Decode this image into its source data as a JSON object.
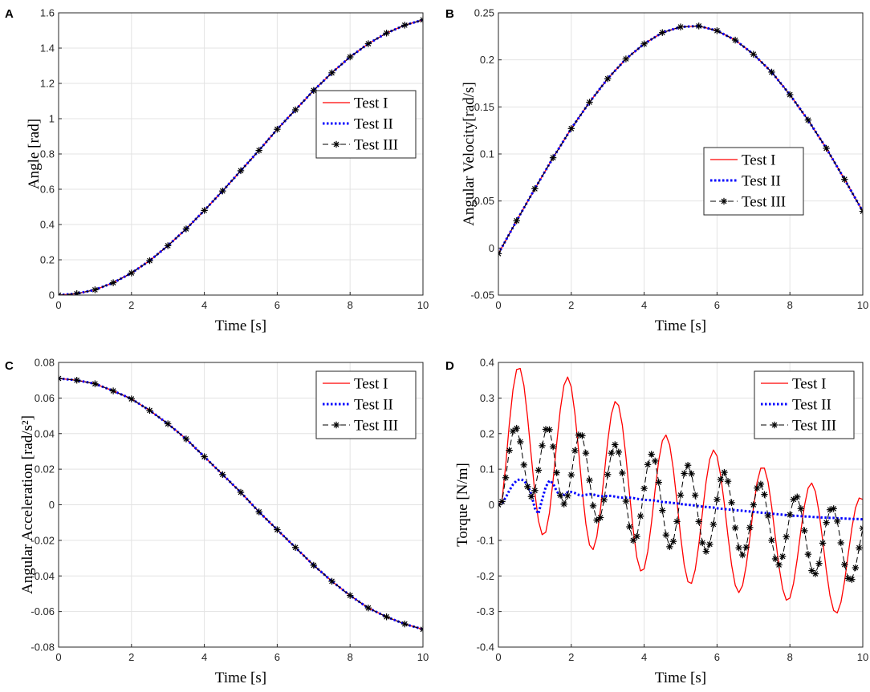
{
  "chart_data": [
    {
      "panel": "A",
      "type": "line",
      "xlabel": "Time [s]",
      "ylabel": "Angle [rad]",
      "xlim": [
        0,
        10
      ],
      "ylim": [
        0,
        1.6
      ],
      "xticks": [
        "0",
        "2",
        "4",
        "6",
        "8",
        "10"
      ],
      "yticks": [
        "0",
        "0.2",
        "0.4",
        "0.6",
        "0.8",
        "1",
        "1.2",
        "1.4",
        "1.6"
      ],
      "grid": true,
      "legend_position": "right-middle",
      "x": [
        0,
        0.5,
        1,
        1.5,
        2,
        2.5,
        3,
        3.5,
        4,
        4.5,
        5,
        5.5,
        6,
        6.5,
        7,
        7.5,
        8,
        8.5,
        9,
        9.5,
        10
      ],
      "series": [
        {
          "name": "Test I",
          "color": "#ff0000",
          "style": "solid",
          "values": [
            0,
            0.008,
            0.03,
            0.07,
            0.125,
            0.195,
            0.28,
            0.375,
            0.48,
            0.59,
            0.705,
            0.82,
            0.94,
            1.05,
            1.16,
            1.26,
            1.35,
            1.425,
            1.485,
            1.53,
            1.56
          ]
        },
        {
          "name": "Test II",
          "color": "#0000ff",
          "style": "dotted",
          "values": [
            0,
            0.008,
            0.03,
            0.07,
            0.125,
            0.195,
            0.28,
            0.375,
            0.48,
            0.59,
            0.705,
            0.82,
            0.94,
            1.05,
            1.16,
            1.26,
            1.35,
            1.425,
            1.485,
            1.53,
            1.56
          ]
        },
        {
          "name": "Test III",
          "color": "#000000",
          "style": "dashed-star",
          "values": [
            0,
            0.008,
            0.03,
            0.07,
            0.125,
            0.195,
            0.28,
            0.375,
            0.48,
            0.59,
            0.705,
            0.82,
            0.94,
            1.05,
            1.16,
            1.26,
            1.35,
            1.425,
            1.485,
            1.53,
            1.56
          ]
        }
      ]
    },
    {
      "panel": "B",
      "type": "line",
      "xlabel": "Time [s]",
      "ylabel": "Angular Velocity[rad/s]",
      "xlim": [
        0,
        10
      ],
      "ylim": [
        -0.05,
        0.25
      ],
      "xticks": [
        "0",
        "2",
        "4",
        "6",
        "8",
        "10"
      ],
      "yticks": [
        "-0.05",
        "0",
        "0.05",
        "0.1",
        "0.15",
        "0.2",
        "0.25"
      ],
      "grid": true,
      "legend_position": "right-middle",
      "x": [
        0,
        0.5,
        1,
        1.5,
        2,
        2.5,
        3,
        3.5,
        4,
        4.5,
        5,
        5.5,
        6,
        6.5,
        7,
        7.5,
        8,
        8.5,
        9,
        9.5,
        10
      ],
      "series": [
        {
          "name": "Test I",
          "color": "#ff0000",
          "style": "solid",
          "values": [
            -0.006,
            0.029,
            0.063,
            0.096,
            0.127,
            0.155,
            0.18,
            0.201,
            0.217,
            0.229,
            0.235,
            0.236,
            0.231,
            0.221,
            0.206,
            0.187,
            0.163,
            0.136,
            0.106,
            0.073,
            0.039
          ]
        },
        {
          "name": "Test II",
          "color": "#0000ff",
          "style": "dotted",
          "values": [
            -0.006,
            0.029,
            0.063,
            0.096,
            0.127,
            0.155,
            0.18,
            0.201,
            0.217,
            0.229,
            0.235,
            0.236,
            0.231,
            0.221,
            0.206,
            0.187,
            0.163,
            0.136,
            0.106,
            0.073,
            0.039
          ]
        },
        {
          "name": "Test III",
          "color": "#000000",
          "style": "dashed-star",
          "values": [
            -0.006,
            0.029,
            0.063,
            0.096,
            0.127,
            0.155,
            0.18,
            0.201,
            0.217,
            0.229,
            0.235,
            0.236,
            0.231,
            0.221,
            0.206,
            0.187,
            0.163,
            0.136,
            0.106,
            0.073,
            0.039
          ]
        }
      ]
    },
    {
      "panel": "C",
      "type": "line",
      "xlabel": "Time [s]",
      "ylabel": "Angular Acceleration [rad/s²]",
      "xlim": [
        0,
        10
      ],
      "ylim": [
        -0.08,
        0.08
      ],
      "xticks": [
        "0",
        "2",
        "4",
        "6",
        "8",
        "10"
      ],
      "yticks": [
        "-0.08",
        "-0.06",
        "-0.04",
        "-0.02",
        "0",
        "0.02",
        "0.04",
        "0.06",
        "0.08"
      ],
      "grid": true,
      "legend_position": "top-right",
      "x": [
        0,
        0.5,
        1,
        1.5,
        2,
        2.5,
        3,
        3.5,
        4,
        4.5,
        5,
        5.5,
        6,
        6.5,
        7,
        7.5,
        8,
        8.5,
        9,
        9.5,
        10
      ],
      "series": [
        {
          "name": "Test I",
          "color": "#ff0000",
          "style": "solid",
          "values": [
            0.071,
            0.07,
            0.068,
            0.064,
            0.0595,
            0.053,
            0.0455,
            0.037,
            0.027,
            0.017,
            0.007,
            -0.004,
            -0.014,
            -0.024,
            -0.034,
            -0.043,
            -0.051,
            -0.058,
            -0.063,
            -0.067,
            -0.07
          ]
        },
        {
          "name": "Test II",
          "color": "#0000ff",
          "style": "dotted",
          "values": [
            0.071,
            0.07,
            0.068,
            0.064,
            0.0595,
            0.053,
            0.0455,
            0.037,
            0.027,
            0.017,
            0.007,
            -0.004,
            -0.014,
            -0.024,
            -0.034,
            -0.043,
            -0.051,
            -0.058,
            -0.063,
            -0.067,
            -0.07
          ]
        },
        {
          "name": "Test III",
          "color": "#000000",
          "style": "dashed-star",
          "values": [
            0.071,
            0.07,
            0.068,
            0.064,
            0.0595,
            0.053,
            0.0455,
            0.037,
            0.027,
            0.017,
            0.007,
            -0.004,
            -0.014,
            -0.024,
            -0.034,
            -0.043,
            -0.051,
            -0.058,
            -0.063,
            -0.067,
            -0.07
          ]
        }
      ]
    },
    {
      "panel": "D",
      "type": "line",
      "xlabel": "Time [s]",
      "ylabel": "Torque [N/m]",
      "xlim": [
        0,
        10
      ],
      "ylim": [
        -0.4,
        0.4
      ],
      "xticks": [
        "0",
        "2",
        "4",
        "6",
        "8",
        "10"
      ],
      "yticks": [
        "-0.4",
        "-0.3",
        "-0.2",
        "-0.1",
        "0",
        "0.1",
        "0.2",
        "0.3",
        "0.4"
      ],
      "grid": true,
      "legend_position": "top-right",
      "x": [
        0,
        0.1,
        0.2,
        0.3,
        0.4,
        0.5,
        0.6,
        0.7,
        0.8,
        0.9,
        1.0,
        1.1,
        1.2,
        1.3,
        1.4,
        1.5,
        1.6,
        1.7,
        1.8,
        1.9,
        2.0,
        2.1,
        2.2,
        2.3,
        2.4,
        2.5,
        2.6,
        2.7,
        2.8,
        2.9,
        3.0,
        3.1,
        3.2,
        3.3,
        3.4,
        3.5,
        3.6,
        3.7,
        3.8,
        3.9,
        4.0,
        4.1,
        4.2,
        4.3,
        4.4,
        4.5,
        4.6,
        4.7,
        4.8,
        4.9,
        5.0,
        5.1,
        5.2,
        5.3,
        5.4,
        5.5,
        5.6,
        5.7,
        5.8,
        5.9,
        6.0,
        6.1,
        6.2,
        6.3,
        6.4,
        6.5,
        6.6,
        6.7,
        6.8,
        6.9,
        7.0,
        7.1,
        7.2,
        7.3,
        7.4,
        7.5,
        7.6,
        7.7,
        7.8,
        7.9,
        8.0,
        8.1,
        8.2,
        8.3,
        8.4,
        8.5,
        8.6,
        8.7,
        8.8,
        8.9,
        9.0,
        9.1,
        9.2,
        9.3,
        9.4,
        9.5,
        9.6,
        9.7,
        9.8,
        9.9,
        10.0
      ],
      "series": [
        {
          "name": "Test I",
          "color": "#ff0000",
          "style": "solid",
          "values": [
            0.0,
            0.012,
            0.111,
            0.227,
            0.324,
            0.38,
            0.383,
            0.335,
            0.247,
            0.138,
            0.034,
            -0.045,
            -0.084,
            -0.077,
            -0.023,
            0.068,
            0.172,
            0.269,
            0.336,
            0.359,
            0.331,
            0.257,
            0.153,
            0.041,
            -0.054,
            -0.113,
            -0.126,
            -0.09,
            -0.015,
            0.082,
            0.179,
            0.254,
            0.29,
            0.279,
            0.224,
            0.135,
            0.03,
            -0.071,
            -0.148,
            -0.186,
            -0.18,
            -0.131,
            -0.051,
            0.041,
            0.125,
            0.18,
            0.196,
            0.168,
            0.101,
            0.009,
            -0.088,
            -0.169,
            -0.216,
            -0.221,
            -0.183,
            -0.112,
            -0.022,
            0.065,
            0.128,
            0.154,
            0.137,
            0.083,
            0.003,
            -0.087,
            -0.17,
            -0.226,
            -0.247,
            -0.227,
            -0.172,
            -0.093,
            -0.008,
            0.063,
            0.103,
            0.103,
            0.064,
            -0.005,
            -0.09,
            -0.173,
            -0.236,
            -0.268,
            -0.262,
            -0.221,
            -0.153,
            -0.074,
            -0.002,
            0.047,
            0.061,
            0.037,
            -0.021,
            -0.101,
            -0.185,
            -0.255,
            -0.297,
            -0.304,
            -0.274,
            -0.215,
            -0.14,
            -0.066,
            -0.009,
            0.019,
            0.015
          ]
        },
        {
          "name": "Test II",
          "color": "#0000ff",
          "style": "dotted",
          "values": [
            0.0,
            0.005,
            0.02,
            0.04,
            0.057,
            0.068,
            0.072,
            0.068,
            0.055,
            0.03,
            -0.01,
            -0.025,
            0.015,
            0.05,
            0.068,
            0.06,
            0.038,
            0.025,
            0.028,
            0.035,
            0.036,
            0.033,
            0.028,
            0.026,
            0.028,
            0.03,
            0.029,
            0.026,
            0.024,
            0.024,
            0.025,
            0.025,
            0.023,
            0.021,
            0.02,
            0.02,
            0.02,
            0.019,
            0.017,
            0.015,
            0.014,
            0.013,
            0.013,
            0.012,
            0.01,
            0.008,
            0.007,
            0.006,
            0.005,
            0.004,
            0.002,
            0.001,
            0.0,
            -0.001,
            -0.002,
            -0.004,
            -0.005,
            -0.006,
            -0.007,
            -0.008,
            -0.01,
            -0.011,
            -0.012,
            -0.013,
            -0.014,
            -0.015,
            -0.016,
            -0.017,
            -0.018,
            -0.019,
            -0.02,
            -0.021,
            -0.022,
            -0.023,
            -0.024,
            -0.025,
            -0.026,
            -0.027,
            -0.028,
            -0.029,
            -0.03,
            -0.031,
            -0.031,
            -0.032,
            -0.033,
            -0.033,
            -0.034,
            -0.035,
            -0.035,
            -0.036,
            -0.036,
            -0.037,
            -0.037,
            -0.038,
            -0.038,
            -0.039,
            -0.039,
            -0.04,
            -0.04,
            -0.04,
            -0.041
          ]
        },
        {
          "name": "Test III",
          "color": "#000000",
          "style": "dashed-star",
          "values": [
            0.0,
            0.009,
            0.076,
            0.153,
            0.207,
            0.215,
            0.177,
            0.112,
            0.051,
            0.023,
            0.04,
            0.097,
            0.166,
            0.212,
            0.211,
            0.163,
            0.09,
            0.027,
            0.002,
            0.025,
            0.084,
            0.152,
            0.196,
            0.194,
            0.145,
            0.069,
            -0.003,
            -0.043,
            -0.036,
            0.014,
            0.085,
            0.145,
            0.169,
            0.148,
            0.089,
            0.01,
            -0.062,
            -0.1,
            -0.089,
            -0.032,
            0.046,
            0.113,
            0.142,
            0.123,
            0.063,
            -0.016,
            -0.085,
            -0.118,
            -0.103,
            -0.047,
            0.027,
            0.088,
            0.111,
            0.087,
            0.027,
            -0.047,
            -0.107,
            -0.131,
            -0.111,
            -0.055,
            0.015,
            0.071,
            0.091,
            0.066,
            0.006,
            -0.065,
            -0.121,
            -0.141,
            -0.119,
            -0.064,
            0.0,
            0.047,
            0.058,
            0.029,
            -0.031,
            -0.1,
            -0.152,
            -0.169,
            -0.145,
            -0.09,
            -0.028,
            0.015,
            0.022,
            -0.011,
            -0.073,
            -0.139,
            -0.185,
            -0.194,
            -0.165,
            -0.108,
            -0.05,
            -0.014,
            -0.011,
            -0.046,
            -0.107,
            -0.168,
            -0.207,
            -0.21,
            -0.177,
            -0.121,
            -0.066
          ]
        }
      ]
    }
  ]
}
